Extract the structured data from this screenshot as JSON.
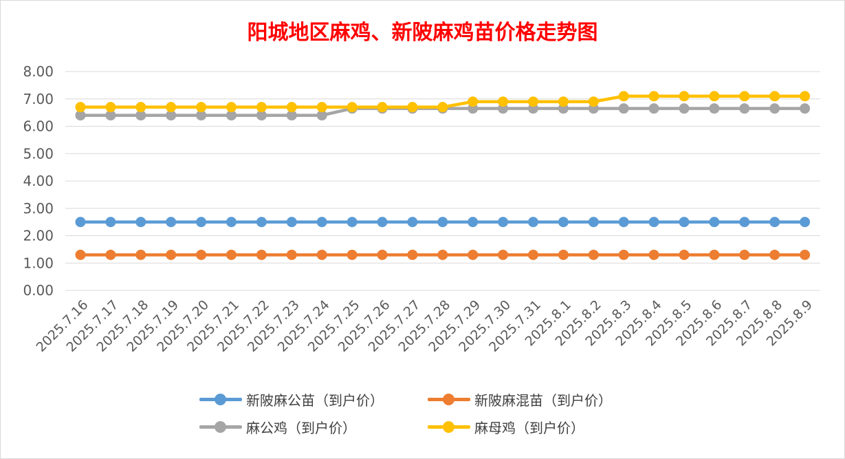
{
  "chart_data": {
    "type": "line",
    "title": "阳城地区麻鸡、新陂麻鸡苗价格走势图",
    "xlabel": "",
    "ylabel": "",
    "ylim": [
      0,
      8
    ],
    "yticks": [
      "0.00",
      "1.00",
      "2.00",
      "3.00",
      "4.00",
      "5.00",
      "6.00",
      "7.00",
      "8.00"
    ],
    "grid": true,
    "legend_position": "bottom",
    "categories": [
      "2025.7.16",
      "2025.7.17",
      "2025.7.18",
      "2025.7.19",
      "2025.7.20",
      "2025.7.21",
      "2025.7.22",
      "2025.7.23",
      "2025.7.24",
      "2025.7.25",
      "2025.7.26",
      "2025.7.27",
      "2025.7.28",
      "2025.7.29",
      "2025.7.30",
      "2025.7.31",
      "2025.8.1",
      "2025.8.2",
      "2025.8.3",
      "2025.8.4",
      "2025.8.5",
      "2025.8.6",
      "2025.8.7",
      "2025.8.8",
      "2025.8.9"
    ],
    "series": [
      {
        "name": "新陂麻公苗（到户价）",
        "color": "#5b9bd5",
        "values": [
          2.5,
          2.5,
          2.5,
          2.5,
          2.5,
          2.5,
          2.5,
          2.5,
          2.5,
          2.5,
          2.5,
          2.5,
          2.5,
          2.5,
          2.5,
          2.5,
          2.5,
          2.5,
          2.5,
          2.5,
          2.5,
          2.5,
          2.5,
          2.5,
          2.5
        ]
      },
      {
        "name": "新陂麻混苗（到户价）",
        "color": "#ed7d31",
        "values": [
          1.3,
          1.3,
          1.3,
          1.3,
          1.3,
          1.3,
          1.3,
          1.3,
          1.3,
          1.3,
          1.3,
          1.3,
          1.3,
          1.3,
          1.3,
          1.3,
          1.3,
          1.3,
          1.3,
          1.3,
          1.3,
          1.3,
          1.3,
          1.3,
          1.3
        ]
      },
      {
        "name": "麻公鸡（到户价）",
        "color": "#a5a5a5",
        "values": [
          6.4,
          6.4,
          6.4,
          6.4,
          6.4,
          6.4,
          6.4,
          6.4,
          6.4,
          6.65,
          6.65,
          6.65,
          6.65,
          6.65,
          6.65,
          6.65,
          6.65,
          6.65,
          6.65,
          6.65,
          6.65,
          6.65,
          6.65,
          6.65,
          6.65
        ]
      },
      {
        "name": "麻母鸡（到户价）",
        "color": "#ffc000",
        "values": [
          6.7,
          6.7,
          6.7,
          6.7,
          6.7,
          6.7,
          6.7,
          6.7,
          6.7,
          6.7,
          6.7,
          6.7,
          6.7,
          6.9,
          6.9,
          6.9,
          6.9,
          6.9,
          7.1,
          7.1,
          7.1,
          7.1,
          7.1,
          7.1,
          7.1
        ]
      }
    ]
  }
}
